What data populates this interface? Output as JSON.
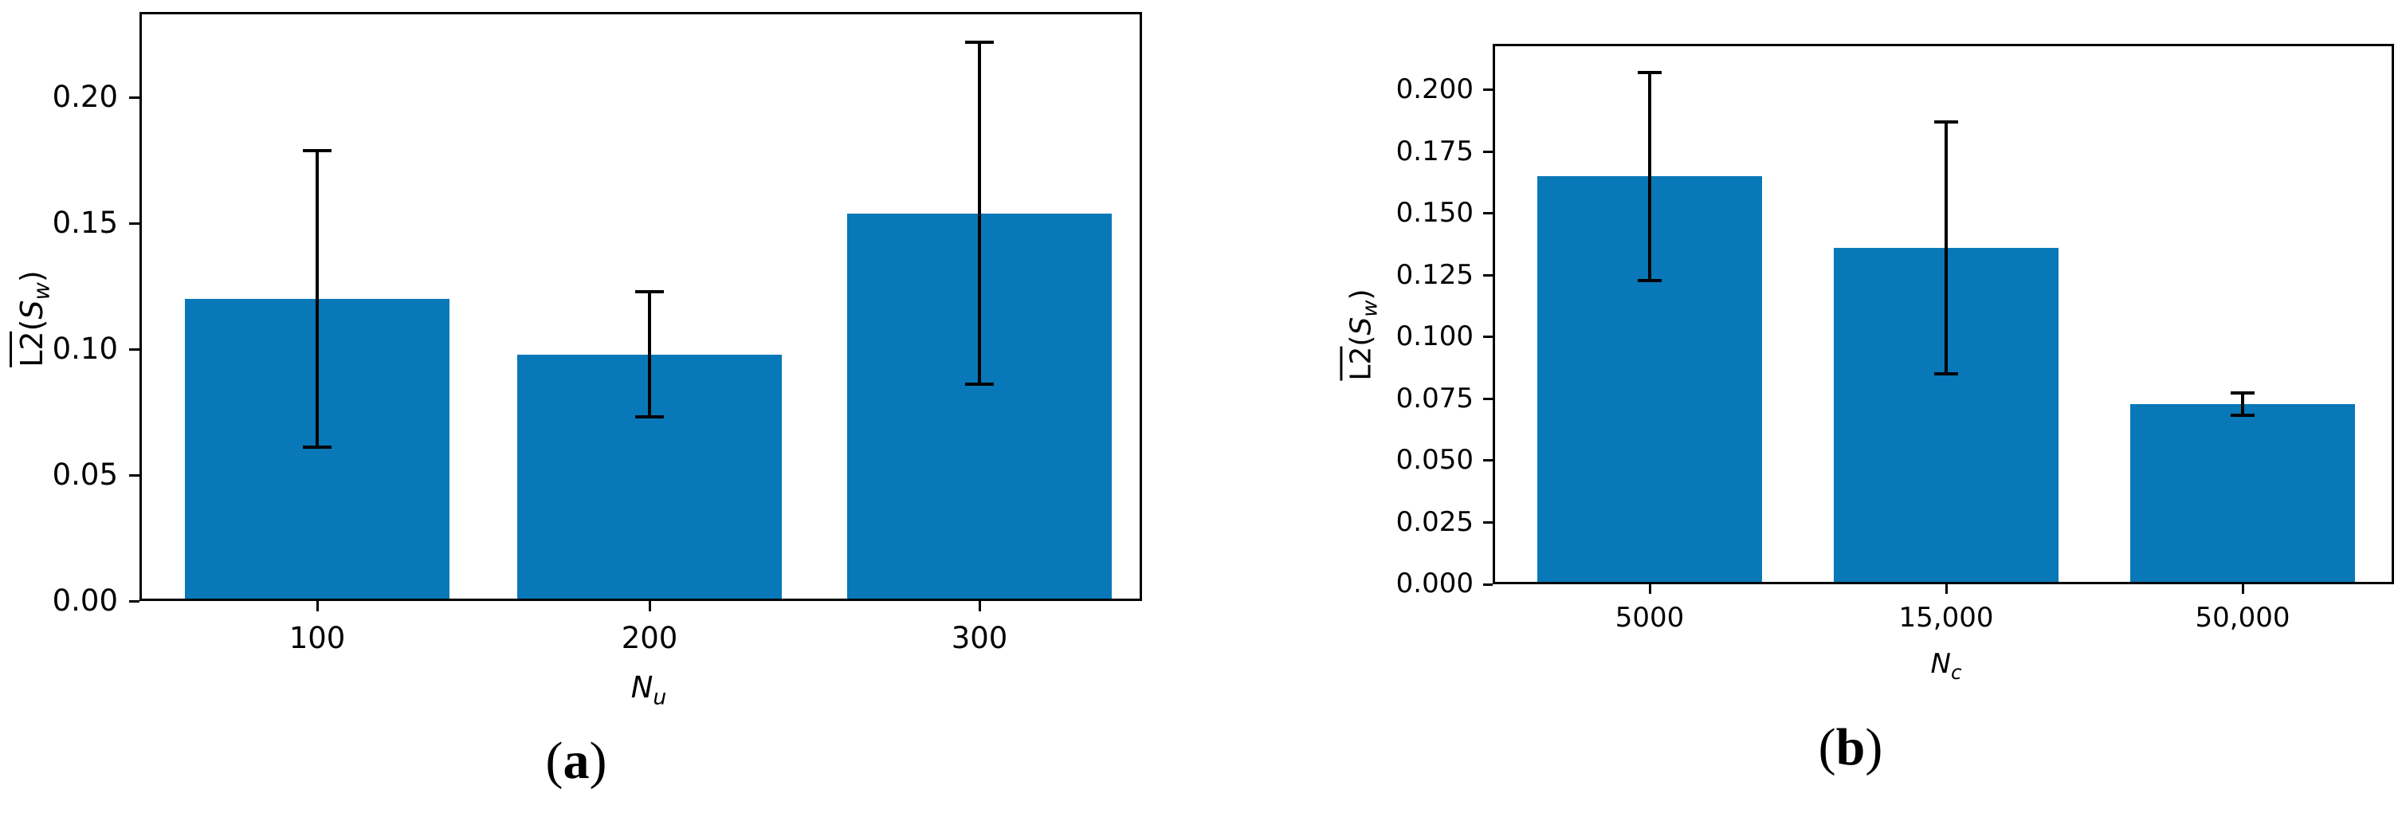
{
  "figure": {
    "bar_color": "#0878b8",
    "error_color": "#000000",
    "background": "#ffffff"
  },
  "captions": {
    "a": {
      "open": "(",
      "letter": "a",
      "close": ")"
    },
    "b": {
      "open": "(",
      "letter": "b",
      "close": ")"
    }
  },
  "chart_data": [
    {
      "id": "a",
      "type": "bar",
      "title": "",
      "categories": [
        "100",
        "200",
        "300"
      ],
      "values": [
        0.12,
        0.098,
        0.154
      ],
      "errors": [
        0.059,
        0.025,
        0.068
      ],
      "xlabel": {
        "base": "N",
        "sub": "u"
      },
      "ylabel": {
        "overline": "L2",
        "open": "(",
        "var": "S",
        "sub": "w",
        "close": ")"
      },
      "ytick_labels": [
        "0.00",
        "0.05",
        "0.10",
        "0.15",
        "0.20"
      ],
      "ytick_values": [
        0.0,
        0.05,
        0.1,
        0.15,
        0.2
      ],
      "ylim": [
        0,
        0.234
      ],
      "grid": false,
      "legend": null
    },
    {
      "id": "b",
      "type": "bar",
      "title": "",
      "categories": [
        "5000",
        "15,000",
        "50,000"
      ],
      "values": [
        0.165,
        0.136,
        0.073
      ],
      "errors": [
        0.042,
        0.051,
        0.0045
      ],
      "xlabel": {
        "base": "N",
        "sub": "c"
      },
      "ylabel": {
        "overline": "L2",
        "open": "(",
        "var": "S",
        "sub": "w",
        "close": ")"
      },
      "ytick_labels": [
        "0.000",
        "0.025",
        "0.050",
        "0.075",
        "0.100",
        "0.125",
        "0.150",
        "0.175",
        "0.200"
      ],
      "ytick_values": [
        0.0,
        0.025,
        0.05,
        0.075,
        0.1,
        0.125,
        0.15,
        0.175,
        0.2
      ],
      "ylim": [
        0,
        0.2187
      ],
      "grid": false,
      "legend": null
    }
  ]
}
